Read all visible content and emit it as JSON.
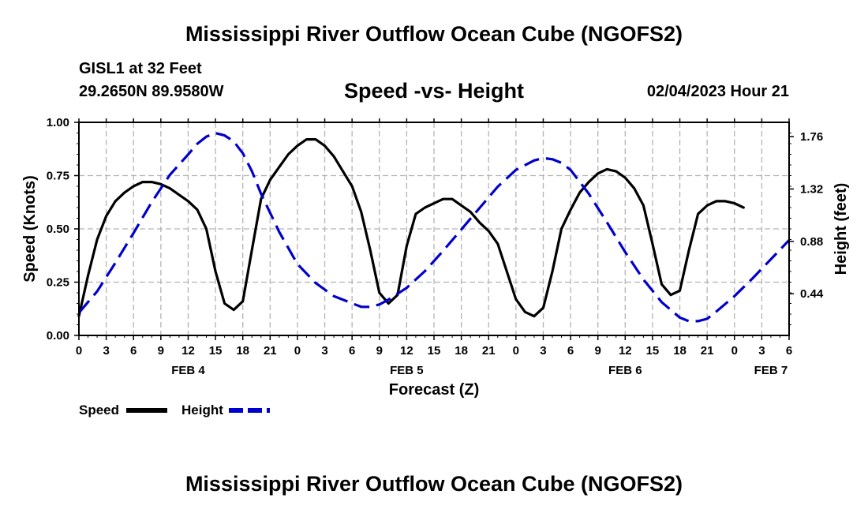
{
  "header": {
    "title": "Mississippi River Outflow Ocean Cube (NGOFS2)",
    "station": "GISL1 at 32 Feet",
    "coordinates": "29.2650N  89.9580W",
    "subtitle": "Speed -vs- Height",
    "datetime": "02/04/2023 Hour 21"
  },
  "footer": {
    "title": "Mississippi River Outflow Ocean Cube (NGOFS2)"
  },
  "colors": {
    "speed": "#000000",
    "height": "#0000cc",
    "grid": "#b4b4b4"
  },
  "chart_data": {
    "type": "line",
    "title": "Speed -vs- Height",
    "xlabel": "Forecast (Z)",
    "ylabel": "Speed (Knots)",
    "y2label": "Height (feet)",
    "x_units": "hours from 00Z FEB 4",
    "xlim": [
      0,
      78
    ],
    "ylim": [
      0,
      1.0
    ],
    "y2lim": [
      0.09,
      1.88
    ],
    "x_ticks": [
      0,
      3,
      6,
      9,
      12,
      15,
      18,
      21,
      24,
      27,
      30,
      33,
      36,
      39,
      42,
      45,
      48,
      51,
      54,
      57,
      60,
      63,
      66,
      69,
      72,
      75,
      78
    ],
    "x_tick_labels": [
      "0",
      "3",
      "6",
      "9",
      "12",
      "15",
      "18",
      "21",
      "0",
      "3",
      "6",
      "9",
      "12",
      "15",
      "18",
      "21",
      "0",
      "3",
      "6",
      "9",
      "12",
      "15",
      "18",
      "21",
      "0",
      "3",
      "6"
    ],
    "y_ticks": [
      0,
      0.25,
      0.5,
      0.75,
      1.0
    ],
    "y_tick_labels": [
      "0.00",
      "0.25",
      "0.50",
      "0.75",
      "1.00"
    ],
    "y2_ticks": [
      0.44,
      0.88,
      1.32,
      1.76
    ],
    "y2_tick_labels": [
      "0.44",
      "0.88",
      "1.32",
      "1.76"
    ],
    "day_labels": [
      {
        "x": 12,
        "label": "FEB 4"
      },
      {
        "x": 36,
        "label": "FEB 5"
      },
      {
        "x": 60,
        "label": "FEB 6"
      },
      {
        "x": 76,
        "label": "FEB 7"
      }
    ],
    "grid": true,
    "legend": "bottom-left",
    "series": [
      {
        "name": "Speed",
        "axis": "left",
        "style": "solid",
        "points": [
          [
            0,
            0.09
          ],
          [
            1,
            0.28
          ],
          [
            2,
            0.45
          ],
          [
            3,
            0.56
          ],
          [
            4,
            0.63
          ],
          [
            5,
            0.67
          ],
          [
            6,
            0.7
          ],
          [
            7,
            0.72
          ],
          [
            8,
            0.72
          ],
          [
            9,
            0.71
          ],
          [
            10,
            0.69
          ],
          [
            11,
            0.66
          ],
          [
            12,
            0.63
          ],
          [
            13,
            0.59
          ],
          [
            14,
            0.5
          ],
          [
            15,
            0.3
          ],
          [
            16,
            0.15
          ],
          [
            17,
            0.12
          ],
          [
            18,
            0.16
          ],
          [
            19,
            0.4
          ],
          [
            20,
            0.64
          ],
          [
            21,
            0.73
          ],
          [
            22,
            0.79
          ],
          [
            23,
            0.85
          ],
          [
            24,
            0.89
          ],
          [
            25,
            0.92
          ],
          [
            26,
            0.92
          ],
          [
            27,
            0.89
          ],
          [
            28,
            0.84
          ],
          [
            29,
            0.77
          ],
          [
            30,
            0.7
          ],
          [
            31,
            0.58
          ],
          [
            32,
            0.4
          ],
          [
            33,
            0.2
          ],
          [
            34,
            0.15
          ],
          [
            35,
            0.19
          ],
          [
            36,
            0.42
          ],
          [
            37,
            0.57
          ],
          [
            38,
            0.6
          ],
          [
            39,
            0.62
          ],
          [
            40,
            0.64
          ],
          [
            41,
            0.64
          ],
          [
            42,
            0.61
          ],
          [
            43,
            0.58
          ],
          [
            44,
            0.53
          ],
          [
            45,
            0.49
          ],
          [
            46,
            0.43
          ],
          [
            47,
            0.3
          ],
          [
            48,
            0.17
          ],
          [
            49,
            0.11
          ],
          [
            50,
            0.09
          ],
          [
            51,
            0.13
          ],
          [
            52,
            0.3
          ],
          [
            53,
            0.5
          ],
          [
            54,
            0.59
          ],
          [
            55,
            0.67
          ],
          [
            56,
            0.72
          ],
          [
            57,
            0.76
          ],
          [
            58,
            0.78
          ],
          [
            59,
            0.77
          ],
          [
            60,
            0.74
          ],
          [
            61,
            0.69
          ],
          [
            62,
            0.61
          ],
          [
            63,
            0.43
          ],
          [
            64,
            0.24
          ],
          [
            65,
            0.19
          ],
          [
            66,
            0.21
          ],
          [
            67,
            0.4
          ],
          [
            68,
            0.57
          ],
          [
            69,
            0.61
          ],
          [
            70,
            0.63
          ],
          [
            71,
            0.63
          ],
          [
            72,
            0.62
          ],
          [
            73,
            0.6
          ]
        ]
      },
      {
        "name": "Height",
        "axis": "right",
        "style": "dashed",
        "points": [
          [
            0,
            0.28
          ],
          [
            2,
            0.46
          ],
          [
            4,
            0.7
          ],
          [
            6,
            0.95
          ],
          [
            8,
            1.21
          ],
          [
            10,
            1.44
          ],
          [
            12,
            1.61
          ],
          [
            13,
            1.7
          ],
          [
            14,
            1.76
          ],
          [
            15,
            1.79
          ],
          [
            16,
            1.77
          ],
          [
            17,
            1.72
          ],
          [
            18,
            1.62
          ],
          [
            19,
            1.47
          ],
          [
            20,
            1.28
          ],
          [
            22,
            0.96
          ],
          [
            24,
            0.69
          ],
          [
            26,
            0.53
          ],
          [
            28,
            0.42
          ],
          [
            30,
            0.36
          ],
          [
            31,
            0.33
          ],
          [
            32,
            0.33
          ],
          [
            33,
            0.35
          ],
          [
            34,
            0.39
          ],
          [
            36,
            0.49
          ],
          [
            38,
            0.63
          ],
          [
            40,
            0.8
          ],
          [
            42,
            0.98
          ],
          [
            44,
            1.16
          ],
          [
            46,
            1.34
          ],
          [
            48,
            1.48
          ],
          [
            50,
            1.56
          ],
          [
            51,
            1.58
          ],
          [
            52,
            1.57
          ],
          [
            53,
            1.54
          ],
          [
            54,
            1.48
          ],
          [
            56,
            1.28
          ],
          [
            58,
            1.04
          ],
          [
            60,
            0.79
          ],
          [
            62,
            0.56
          ],
          [
            64,
            0.37
          ],
          [
            66,
            0.24
          ],
          [
            67,
            0.21
          ],
          [
            68,
            0.21
          ],
          [
            69,
            0.23
          ],
          [
            70,
            0.29
          ],
          [
            72,
            0.42
          ],
          [
            74,
            0.57
          ],
          [
            76,
            0.73
          ],
          [
            78,
            0.89
          ]
        ]
      }
    ]
  }
}
